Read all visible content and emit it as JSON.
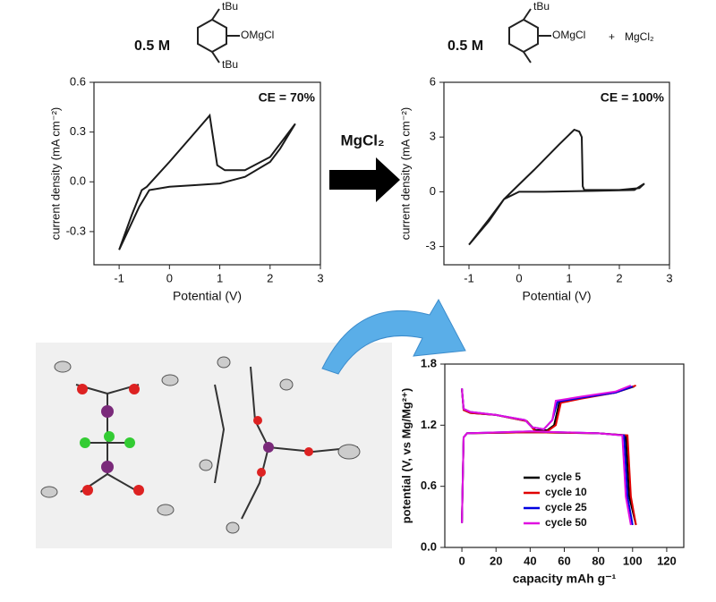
{
  "labels": {
    "left_conc": "0.5 M",
    "left_tbu_top": "tBu",
    "left_group": "OMgCl",
    "left_tbu_bottom": "tBu",
    "right_conc": "0.5 M",
    "right_tbu_top": "tBu",
    "right_group": "OMgCl",
    "right_plus": "+",
    "right_salt": "MgCl₂",
    "arrow_label": "MgCl₂"
  },
  "chart_data": [
    {
      "type": "line",
      "annotation": "CE = 70%",
      "xlabel": "Potential (V)",
      "ylabel": "current density (mA cm⁻²)",
      "xlim": [
        -1.5,
        3
      ],
      "xticks": [
        -1,
        0,
        1,
        2,
        3
      ],
      "ylim": [
        -0.5,
        0.6
      ],
      "yticks": [
        0.6,
        0.3,
        {
          "value": 0,
          "label": "0.0"
        },
        -0.3
      ],
      "series": [
        {
          "color": "#1a1a1a",
          "x": [
            -1,
            -0.75,
            -0.55,
            -0.45,
            0,
            0.4,
            0.8,
            0.85,
            0.95,
            1.1,
            1.5,
            2.0,
            2.5,
            2.2,
            2.0,
            1.5,
            1.0,
            0.5,
            0,
            -0.4,
            -0.6,
            -0.8,
            -1
          ],
          "values": [
            -0.41,
            -0.2,
            -0.05,
            -0.03,
            0.12,
            0.26,
            0.4,
            0.3,
            0.1,
            0.07,
            0.07,
            0.15,
            0.35,
            0.2,
            0.12,
            0.03,
            -0.01,
            -0.02,
            -0.03,
            -0.05,
            -0.15,
            -0.28,
            -0.41
          ]
        }
      ]
    },
    {
      "type": "line",
      "annotation": "CE = 100%",
      "xlabel": "Potential (V)",
      "ylabel": "current density (mA cm⁻²)",
      "xlim": [
        -1.5,
        3
      ],
      "xticks": [
        -1,
        0,
        1,
        2,
        3
      ],
      "ylim": [
        -4,
        6
      ],
      "yticks": [
        6,
        3,
        0,
        -3
      ],
      "series": [
        {
          "color": "#1a1a1a",
          "x": [
            -1,
            -0.6,
            -0.3,
            -0.15,
            0.3,
            0.8,
            1.1,
            1.2,
            1.25,
            1.27,
            1.3,
            2.0,
            2.4,
            2.5,
            2.3,
            1.5,
            0.5,
            0,
            -0.3,
            -0.6,
            -1
          ],
          "values": [
            -2.9,
            -1.6,
            -0.4,
            0,
            1.2,
            2.6,
            3.4,
            3.3,
            3.0,
            0.3,
            0.1,
            0.1,
            0.2,
            0.45,
            0.1,
            0.05,
            0,
            0,
            -0.4,
            -1.5,
            -2.9
          ]
        }
      ]
    },
    {
      "type": "line",
      "xlabel": "capacity mAh g⁻¹",
      "ylabel": "potential (V, vs Mg/Mg²⁺)",
      "xlim": [
        -10,
        130
      ],
      "xticks": [
        0,
        20,
        40,
        60,
        80,
        100,
        120
      ],
      "ylim": [
        0,
        1.8
      ],
      "yticks": [
        1.8,
        1.2,
        0.6,
        {
          "value": 0,
          "label": "0.0"
        }
      ],
      "legend": "lower right",
      "series": [
        {
          "name": "cycle 5",
          "color": "#000000",
          "x": [
            0,
            1,
            5,
            20,
            38,
            43,
            50,
            54,
            57,
            70,
            90,
            101,
            null,
            0,
            1,
            3,
            40,
            80,
            96,
            98,
            102
          ],
          "values": [
            1.55,
            1.35,
            1.32,
            1.3,
            1.24,
            1.15,
            1.15,
            1.2,
            1.42,
            1.47,
            1.52,
            1.58,
            null,
            0.25,
            1.08,
            1.12,
            1.13,
            1.12,
            1.1,
            0.5,
            0.22
          ]
        },
        {
          "name": "cycle 10",
          "color": "#e00000",
          "x": [
            0,
            1,
            5,
            20,
            38,
            43,
            50,
            55,
            58,
            70,
            90,
            102,
            null,
            0,
            1,
            3,
            40,
            80,
            97,
            99,
            102
          ],
          "values": [
            1.56,
            1.35,
            1.32,
            1.3,
            1.24,
            1.14,
            1.14,
            1.2,
            1.42,
            1.46,
            1.52,
            1.59,
            null,
            0.24,
            1.08,
            1.12,
            1.13,
            1.12,
            1.1,
            0.5,
            0.22
          ]
        },
        {
          "name": "cycle 25",
          "color": "#0000e0",
          "x": [
            0,
            1,
            5,
            20,
            37,
            41,
            48,
            53,
            56,
            70,
            90,
            100,
            null,
            0,
            1,
            3,
            40,
            80,
            95,
            97,
            100
          ],
          "values": [
            1.56,
            1.36,
            1.33,
            1.3,
            1.25,
            1.18,
            1.16,
            1.25,
            1.43,
            1.47,
            1.52,
            1.58,
            null,
            0.24,
            1.08,
            1.12,
            1.14,
            1.12,
            1.1,
            0.5,
            0.22
          ]
        },
        {
          "name": "cycle 50",
          "color": "#e010e0",
          "x": [
            0,
            1,
            5,
            20,
            37,
            41,
            48,
            53,
            55,
            70,
            90,
            99,
            null,
            0,
            1,
            3,
            40,
            80,
            94,
            96,
            99
          ],
          "values": [
            1.56,
            1.36,
            1.33,
            1.3,
            1.25,
            1.18,
            1.16,
            1.25,
            1.44,
            1.48,
            1.53,
            1.59,
            null,
            0.24,
            1.08,
            1.12,
            1.14,
            1.12,
            1.1,
            0.5,
            0.22
          ]
        }
      ]
    }
  ]
}
